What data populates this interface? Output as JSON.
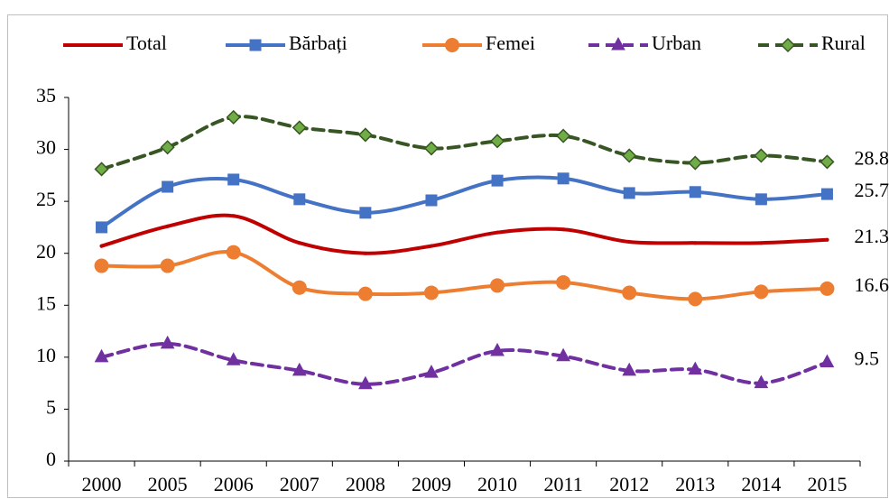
{
  "chart_data": {
    "type": "line",
    "categories": [
      "2000",
      "2005",
      "2006",
      "2007",
      "2008",
      "2009",
      "2010",
      "2011",
      "2012",
      "2013",
      "2014",
      "2015"
    ],
    "ylim": [
      0,
      35
    ],
    "yticks": [
      0,
      5,
      10,
      15,
      20,
      25,
      30,
      35
    ],
    "grid": false,
    "smooth": true,
    "legend": "top",
    "series": [
      {
        "name": "Total",
        "color": "#c00000",
        "marker": "none",
        "dashed": false,
        "values": [
          20.7,
          22.6,
          23.6,
          21.0,
          20.0,
          20.7,
          22.0,
          22.3,
          21.1,
          21.0,
          21.0,
          21.3
        ]
      },
      {
        "name": "Bărbați",
        "color": "#4472c4",
        "marker": "square",
        "dashed": false,
        "values": [
          22.5,
          26.4,
          27.1,
          25.2,
          23.9,
          25.1,
          27.0,
          27.2,
          25.8,
          25.9,
          25.2,
          25.7
        ]
      },
      {
        "name": "Femei",
        "color": "#ed7d31",
        "marker": "circle",
        "dashed": false,
        "values": [
          18.8,
          18.8,
          20.1,
          16.7,
          16.1,
          16.2,
          16.9,
          17.2,
          16.2,
          15.6,
          16.3,
          16.6
        ]
      },
      {
        "name": "Urban",
        "color": "#7030a0",
        "marker": "triangle",
        "dashed": true,
        "values": [
          10.0,
          11.3,
          9.7,
          8.7,
          7.4,
          8.5,
          10.6,
          10.1,
          8.7,
          8.8,
          7.5,
          9.5
        ]
      },
      {
        "name": "Rural",
        "color": "#375623",
        "marker": "diamond",
        "dashed": true,
        "values": [
          28.1,
          30.2,
          33.1,
          32.1,
          31.4,
          30.1,
          30.8,
          31.3,
          29.4,
          28.7,
          29.4,
          28.8
        ]
      }
    ]
  }
}
